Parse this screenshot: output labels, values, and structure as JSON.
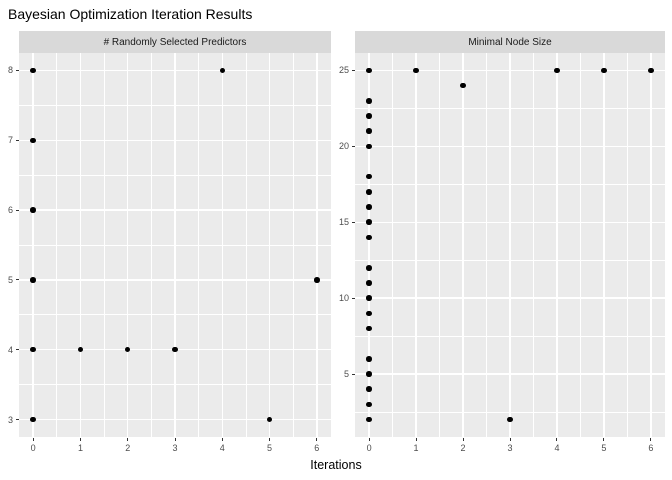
{
  "title": "Bayesian Optimization Iteration Results",
  "xlabel": "Iterations",
  "chart_data": {
    "type": "scatter",
    "title": "Bayesian Optimization Iteration Results",
    "xlabel": "Iterations",
    "legend": "none",
    "grid": "on",
    "colors": {
      "panel_bg": "#EBEBEB",
      "strip_bg": "#D9D9D9",
      "grid": "#FFFFFF",
      "point": "#000000",
      "tick_text": "#4D4D4D"
    },
    "facets": [
      {
        "label": "# Randomly Selected Predictors",
        "x_ticks": [
          0,
          1,
          2,
          3,
          4,
          5,
          6
        ],
        "y_ticks": [
          3,
          4,
          5,
          6,
          7,
          8
        ],
        "x_domain": [
          -0.3,
          6.3
        ],
        "y_domain": [
          2.75,
          8.25
        ],
        "x_minor": [
          0.5,
          1.5,
          2.5,
          3.5,
          4.5,
          5.5
        ],
        "y_minor": [
          3.5,
          4.5,
          5.5,
          6.5,
          7.5
        ],
        "points": [
          [
            0,
            8
          ],
          [
            0,
            7
          ],
          [
            0,
            6
          ],
          [
            0,
            5
          ],
          [
            0,
            4
          ],
          [
            0,
            3
          ],
          [
            1,
            4
          ],
          [
            2,
            4
          ],
          [
            3,
            4
          ],
          [
            4,
            8
          ],
          [
            5,
            3
          ],
          [
            6,
            5
          ]
        ]
      },
      {
        "label": "Minimal Node Size",
        "x_ticks": [
          0,
          1,
          2,
          3,
          4,
          5,
          6
        ],
        "y_ticks": [
          5,
          10,
          15,
          20,
          25
        ],
        "x_domain": [
          -0.3,
          6.3
        ],
        "y_domain": [
          0.85,
          26.15
        ],
        "x_minor": [
          0.5,
          1.5,
          2.5,
          3.5,
          4.5,
          5.5
        ],
        "y_minor": [
          2.5,
          7.5,
          12.5,
          17.5,
          22.5
        ],
        "points": [
          [
            0,
            25
          ],
          [
            0,
            23
          ],
          [
            0,
            22
          ],
          [
            0,
            21
          ],
          [
            0,
            20
          ],
          [
            0,
            18
          ],
          [
            0,
            17
          ],
          [
            0,
            16
          ],
          [
            0,
            15
          ],
          [
            0,
            14
          ],
          [
            0,
            12
          ],
          [
            0,
            11
          ],
          [
            0,
            10
          ],
          [
            0,
            9
          ],
          [
            0,
            8
          ],
          [
            0,
            6
          ],
          [
            0,
            5
          ],
          [
            0,
            4
          ],
          [
            0,
            3
          ],
          [
            0,
            2
          ],
          [
            1,
            25
          ],
          [
            2,
            24
          ],
          [
            3,
            2
          ],
          [
            4,
            25
          ],
          [
            5,
            25
          ],
          [
            6,
            25
          ]
        ]
      }
    ]
  }
}
